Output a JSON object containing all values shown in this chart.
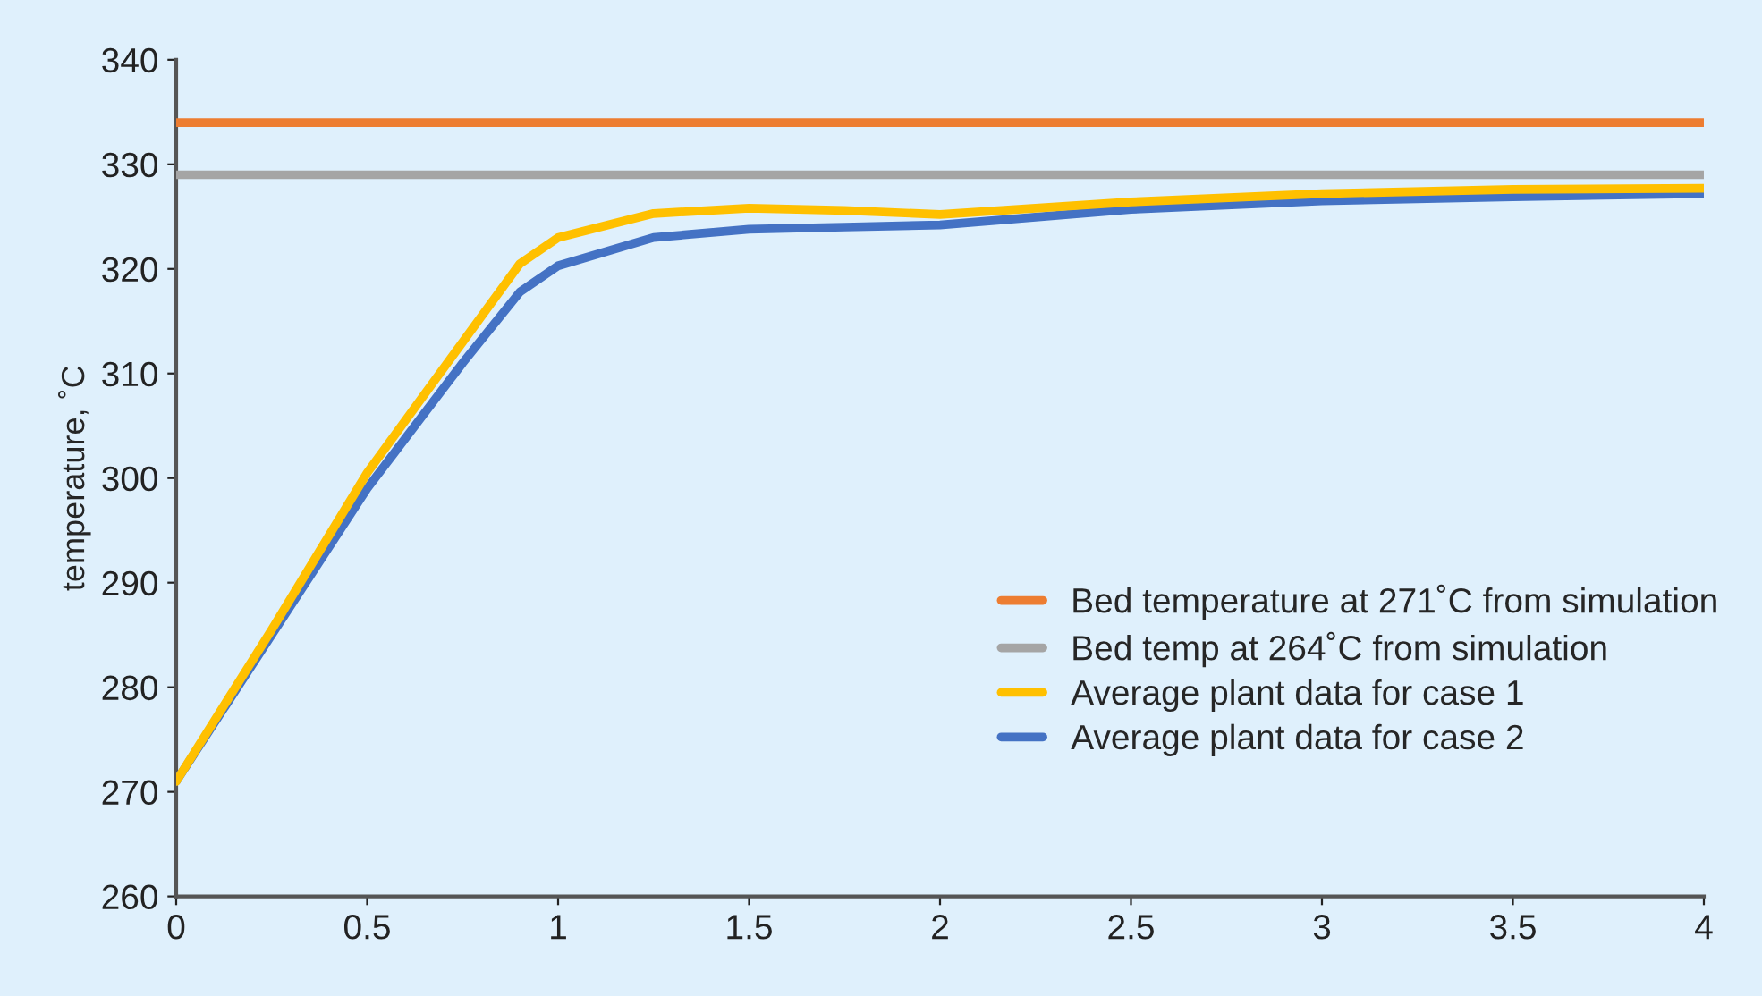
{
  "chart_data": {
    "type": "line",
    "ylabel": "temperature, ˚C",
    "xlim": [
      0,
      4
    ],
    "xticks": [
      0,
      0.5,
      1,
      1.5,
      2,
      2.5,
      3,
      3.5,
      4
    ],
    "ylim": [
      260,
      340
    ],
    "yticks": [
      260,
      270,
      280,
      290,
      300,
      310,
      320,
      330,
      340
    ],
    "grid": false,
    "legend": "bottom right",
    "line_style": "solid",
    "marker": "none",
    "series": [
      {
        "name": "Bed temperature at 271˚C from simulation",
        "color": "#ed7d31",
        "x": [
          0,
          4
        ],
        "values": [
          334,
          334
        ]
      },
      {
        "name": "Bed temp at 264˚C from simulation",
        "color": "#a5a5a5",
        "x": [
          0,
          4
        ],
        "values": [
          329,
          329
        ]
      },
      {
        "name": "Average plant data for case 1",
        "color": "#ffc000",
        "x": [
          0,
          0.25,
          0.5,
          0.75,
          0.9,
          1,
          1.25,
          1.5,
          1.75,
          2,
          2.5,
          3,
          3.5,
          4
        ],
        "values": [
          271,
          285.5,
          300.5,
          313,
          320.5,
          323,
          325.3,
          325.8,
          325.6,
          325.2,
          326.4,
          327.2,
          327.6,
          327.7
        ]
      },
      {
        "name": "Average plant data for case 2",
        "color": "#4472c4",
        "x": [
          0,
          0.25,
          0.5,
          0.75,
          0.9,
          1,
          1.25,
          1.5,
          1.75,
          2,
          2.5,
          3,
          3.5,
          4
        ],
        "values": [
          271,
          285,
          299,
          311,
          317.8,
          320.3,
          323,
          323.8,
          324,
          324.2,
          325.7,
          326.5,
          326.9,
          327.2
        ]
      }
    ]
  }
}
